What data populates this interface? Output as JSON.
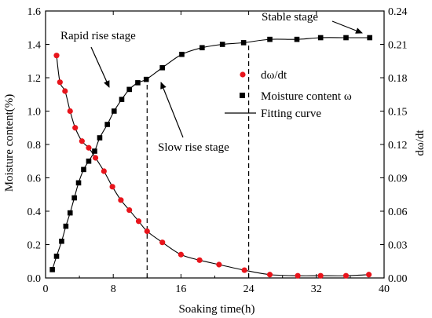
{
  "chart_data": {
    "type": "scatter",
    "xlabel": "Soaking time(h)",
    "ylabel_left": "Moisture content(%)",
    "ylabel_right": "dω/dt",
    "xlim": [
      0,
      40
    ],
    "ylim_left": [
      0,
      1.6
    ],
    "ylim_right": [
      0,
      0.24
    ],
    "x_ticks": [
      0,
      8,
      16,
      24,
      32,
      40
    ],
    "y_ticks_left": [
      "0.0",
      "0.2",
      "0.4",
      "0.6",
      "0.8",
      "1.0",
      "1.2",
      "1.4",
      "1.6"
    ],
    "y_ticks_right": [
      "0.00",
      "0.03",
      "0.06",
      "0.09",
      "0.12",
      "0.15",
      "0.18",
      "0.21",
      "0.24"
    ],
    "grid": false,
    "legend_position": "center-right",
    "series": [
      {
        "name": "dω/dt",
        "axis": "right",
        "marker": "circle",
        "color": "#e8141b",
        "x": [
          1.3,
          1.7,
          2.3,
          2.9,
          3.5,
          4.3,
          5.1,
          5.9,
          6.9,
          7.9,
          8.9,
          9.9,
          11,
          12,
          13.8,
          16,
          18.2,
          20.5,
          23.5,
          26.5,
          29.8,
          32.5,
          35.5,
          38.2
        ],
        "values": [
          0.2,
          0.176,
          0.168,
          0.15,
          0.135,
          0.123,
          0.117,
          0.108,
          0.096,
          0.082,
          0.07,
          0.061,
          0.051,
          0.042,
          0.032,
          0.021,
          0.016,
          0.012,
          0.007,
          0.003,
          0.002,
          0.002,
          0.002,
          0.003
        ]
      },
      {
        "name": "Moisture content ω",
        "axis": "left",
        "marker": "square",
        "color": "#000000",
        "x": [
          0.8,
          1.3,
          1.9,
          2.4,
          2.9,
          3.4,
          3.9,
          4.5,
          5.1,
          5.8,
          6.4,
          7.3,
          8.1,
          9,
          9.9,
          10.9,
          11.9,
          13.8,
          16.1,
          18.5,
          20.9,
          23.4,
          26.5,
          29.7,
          32.5,
          35.5,
          38.3
        ],
        "values": [
          0.05,
          0.13,
          0.22,
          0.31,
          0.39,
          0.48,
          0.57,
          0.65,
          0.7,
          0.76,
          0.84,
          0.92,
          1.0,
          1.07,
          1.13,
          1.17,
          1.19,
          1.26,
          1.34,
          1.38,
          1.4,
          1.41,
          1.43,
          1.43,
          1.44,
          1.44,
          1.44
        ]
      },
      {
        "name": "Fitting curve",
        "type": "line",
        "color": "#000000"
      }
    ],
    "vertical_markers_x": [
      12,
      24
    ],
    "annotations": [
      "Rapid rise stage",
      "Slow rise stage",
      "Stable stage"
    ]
  }
}
